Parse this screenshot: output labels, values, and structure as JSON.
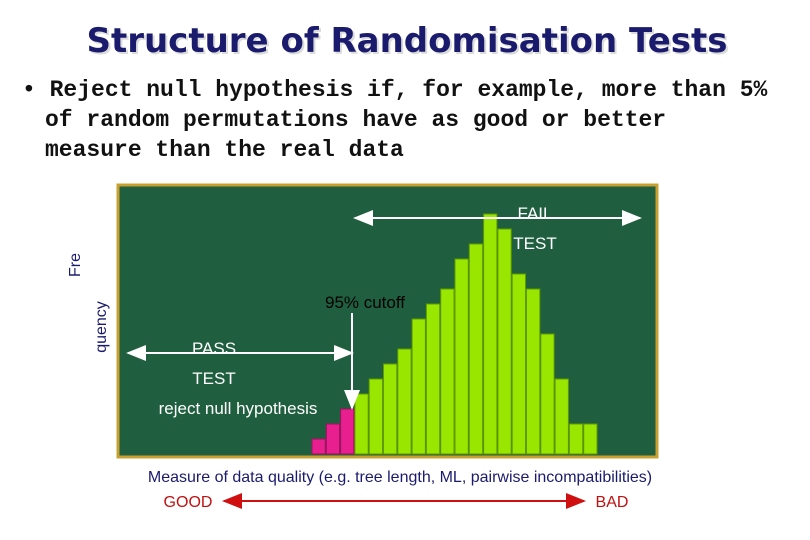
{
  "chart_data": {
    "type": "bar",
    "title": "Structure of Randomisation Tests",
    "bullet": [
      "• Reject null hypothesis if, for example, more than 5%",
      "of random permutations have as good or better",
      "measure than the real data"
    ],
    "ylabel": [
      "Fre",
      "quency"
    ],
    "xlabel": "Measure of data quality (e.g. tree length, ML, pairwise incompatibilities)",
    "x_left": "GOOD",
    "x_right": "BAD",
    "annotations": {
      "fail": [
        "FAIL",
        "TEST"
      ],
      "cutoff": "95% cutoff",
      "pass": [
        "PASS",
        "TEST"
      ],
      "reject": "reject null hypothesis"
    },
    "categories": [
      null,
      null,
      null,
      null,
      null,
      null,
      null,
      null,
      null,
      null,
      null,
      null,
      null,
      null,
      null,
      null,
      null,
      null,
      null,
      null
    ],
    "values": [
      1,
      2,
      3,
      4,
      5,
      6,
      7,
      9,
      10,
      11,
      13,
      14,
      16,
      15,
      12,
      11,
      8,
      5,
      2,
      2
    ],
    "colors": [
      "#e8208f",
      "#e8208f",
      "#e8208f",
      "#99e600",
      "#99e600",
      "#99e600",
      "#99e600",
      "#99e600",
      "#99e600",
      "#99e600",
      "#99e600",
      "#99e600",
      "#99e600",
      "#99e600",
      "#99e600",
      "#99e600",
      "#99e600",
      "#99e600",
      "#99e600",
      "#99e600"
    ],
    "plot_background": "#1f5f3f"
  }
}
